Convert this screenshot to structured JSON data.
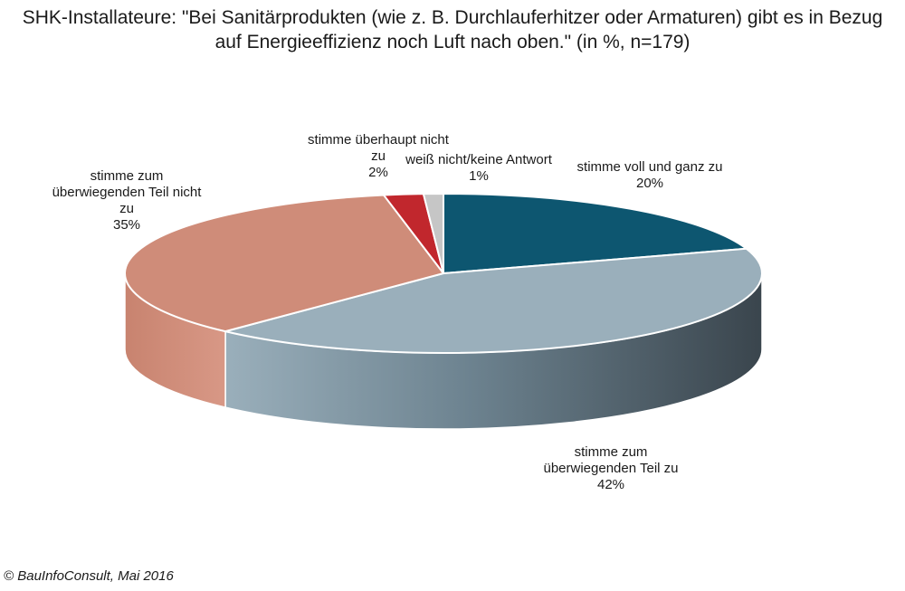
{
  "title_lines": [
    "SHK-Installateure: \"Bei Sanitärprodukten (wie z. B. Durchlauferhitzer oder Armaturen) gibt es in Bezug",
    "auf Energieeffizienz noch Luft nach oben.\" (in %, n=179)"
  ],
  "footer": "© BauInfoConsult, Mai 2016",
  "colors": {
    "voll": "#0d5670",
    "ueberwiegend": "#9aafbb",
    "nicht": "#cf8c79",
    "ueberhaupt_nicht": "#c1272d",
    "weiss_nicht": "#c6c6c6"
  },
  "chart_data": {
    "type": "pie",
    "style": "3d",
    "title": "SHK-Installateure: \"Bei Sanitärprodukten (wie z. B. Durchlauferhitzer oder Armaturen) gibt es in Bezug auf Energieeffizienz noch Luft nach oben.\" (in %, n=179)",
    "unit": "%",
    "n": 179,
    "slices": [
      {
        "key": "voll",
        "label_lines": [
          "stimme voll und ganz zu",
          "20%"
        ],
        "value": 20
      },
      {
        "key": "ueberwiegend",
        "label_lines": [
          "stimme zum",
          "überwiegenden Teil zu",
          "42%"
        ],
        "value": 42
      },
      {
        "key": "nicht",
        "label_lines": [
          "stimme zum",
          "überwiegenden Teil nicht",
          "zu",
          "35%"
        ],
        "value": 35
      },
      {
        "key": "ueberhaupt_nicht",
        "label_lines": [
          "stimme überhaupt nicht",
          "zu",
          "2%"
        ],
        "value": 2
      },
      {
        "key": "weiss_nicht",
        "label_lines": [
          "weiß nicht/keine Antwort",
          "1%"
        ],
        "value": 1
      }
    ]
  }
}
